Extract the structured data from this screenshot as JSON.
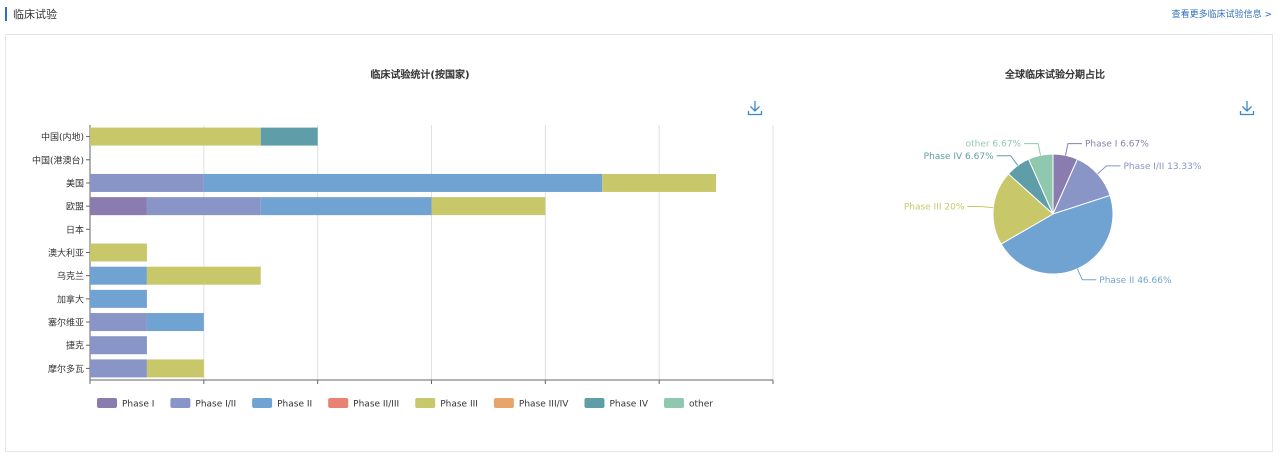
{
  "header": {
    "title": "临床试验",
    "more_link": "查看更多临床试验信息 >"
  },
  "colors": {
    "Phase I": "#8a7cae",
    "Phase I/II": "#8895c6",
    "Phase II": "#71a3d2",
    "Phase II/III": "#e88373",
    "Phase III": "#c8c86a",
    "Phase III/IV": "#e7a56a",
    "Phase IV": "#5f9ea8",
    "other": "#8fc8ae"
  },
  "chart_data": [
    {
      "type": "bar",
      "orientation": "horizontal",
      "stacked": true,
      "title": "临床试验统计(按国家)",
      "categories": [
        "中国(内地)",
        "中国(港澳台)",
        "美国",
        "欧盟",
        "日本",
        "澳大利亚",
        "乌克兰",
        "加拿大",
        "塞尔维亚",
        "捷克",
        "摩尔多瓦"
      ],
      "series": [
        {
          "name": "Phase I",
          "values": [
            0,
            0,
            0,
            1,
            0,
            0,
            0,
            0,
            0,
            0,
            0
          ]
        },
        {
          "name": "Phase I/II",
          "values": [
            0,
            0,
            2,
            2,
            0,
            0,
            0,
            0,
            1,
            1,
            1
          ]
        },
        {
          "name": "Phase II",
          "values": [
            0,
            0,
            7,
            3,
            0,
            0,
            1,
            1,
            1,
            0,
            0
          ]
        },
        {
          "name": "Phase II/III",
          "values": [
            0,
            0,
            0,
            0,
            0,
            0,
            0,
            0,
            0,
            0,
            0
          ]
        },
        {
          "name": "Phase III",
          "values": [
            3,
            0,
            2,
            2,
            0,
            1,
            2,
            0,
            0,
            0,
            1
          ]
        },
        {
          "name": "Phase III/IV",
          "values": [
            0,
            0,
            0,
            0,
            0,
            0,
            0,
            0,
            0,
            0,
            0
          ]
        },
        {
          "name": "Phase IV",
          "values": [
            1,
            0,
            0,
            0,
            0,
            0,
            0,
            0,
            0,
            0,
            0
          ]
        },
        {
          "name": "other",
          "values": [
            0,
            0,
            0,
            0,
            0,
            0,
            0,
            0,
            0,
            0,
            0
          ]
        }
      ],
      "xlim": [
        0,
        12
      ],
      "grid": true,
      "legend_position": "bottom-left"
    },
    {
      "type": "pie",
      "title": "全球临床试验分期占比",
      "slices": [
        {
          "name": "Phase I",
          "value": 6.67,
          "label": "Phase I 6.67%"
        },
        {
          "name": "Phase I/II",
          "value": 13.33,
          "label": "Phase I/II 13.33%"
        },
        {
          "name": "Phase II",
          "value": 46.66,
          "label": "Phase II 46.66%"
        },
        {
          "name": "Phase III",
          "value": 20,
          "label": "Phase III 20%"
        },
        {
          "name": "Phase IV",
          "value": 6.67,
          "label": "Phase IV 6.67%"
        },
        {
          "name": "other",
          "value": 6.67,
          "label": "other 6.67%"
        }
      ]
    }
  ]
}
